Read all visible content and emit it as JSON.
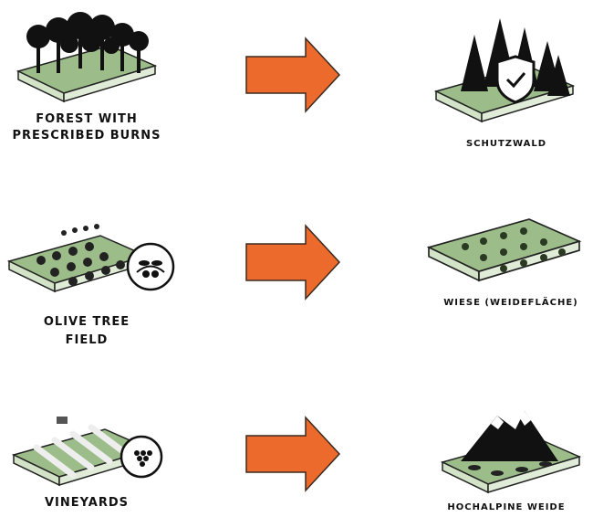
{
  "rows": [
    {
      "from": {
        "label_lines": [
          "FOREST WITH",
          "PRESCRIBED BURNS"
        ]
      },
      "to": {
        "label": "SCHUTZWALD"
      }
    },
    {
      "from": {
        "label_lines": [
          "OLIVE TREE",
          "FIELD"
        ]
      },
      "to": {
        "label": "WIESE (WEIDEFLÄCHE)"
      }
    },
    {
      "from": {
        "label_lines": [
          "VINEYARDS"
        ]
      },
      "to": {
        "label": "HOCHALPINE WEIDE"
      }
    }
  ]
}
